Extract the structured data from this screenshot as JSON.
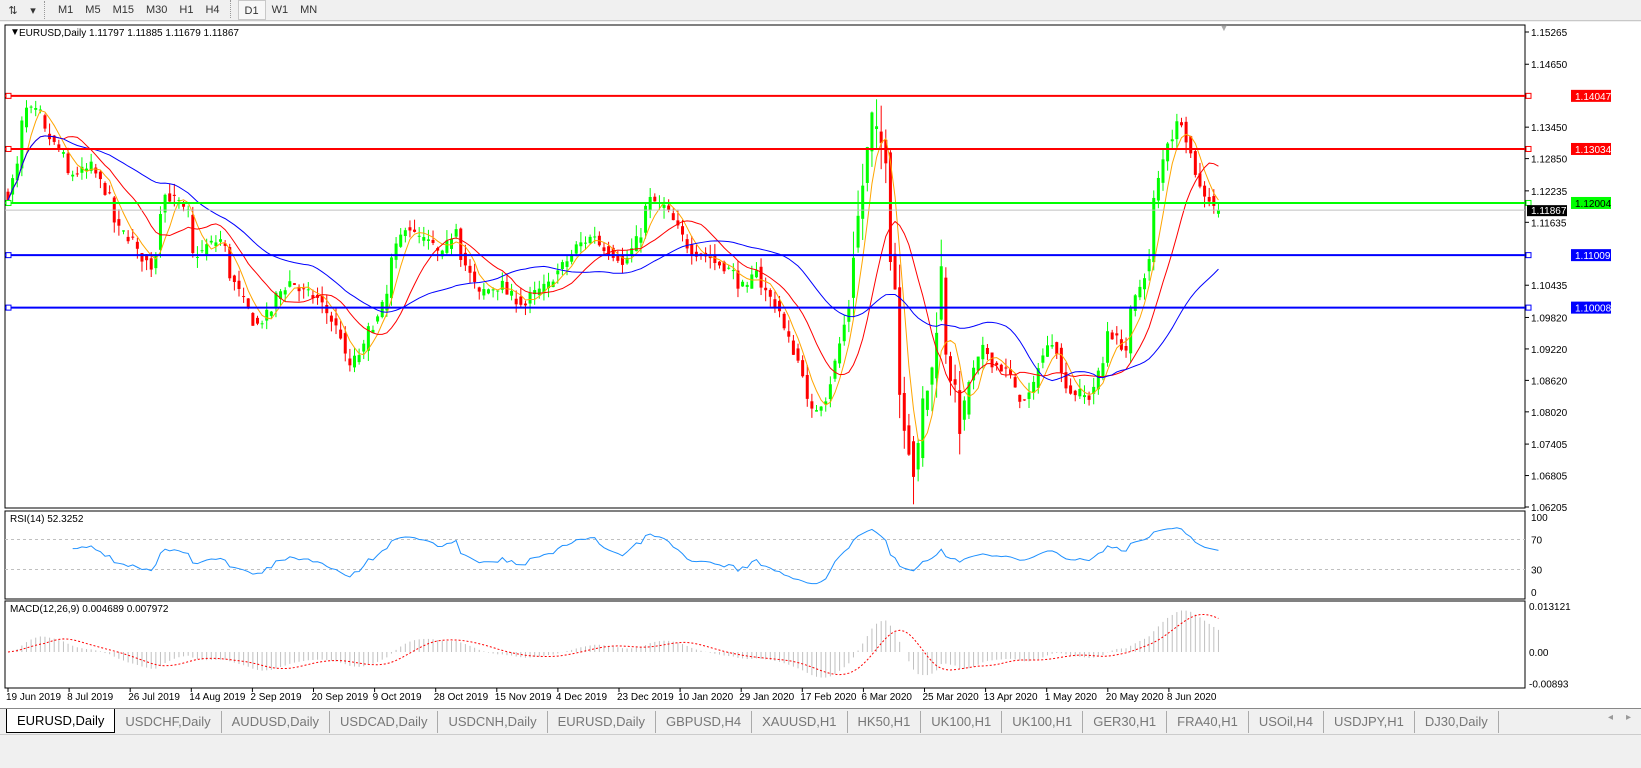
{
  "toolbar": {
    "icons": [
      "chart-style-icon",
      "dropdown-icon"
    ],
    "timeframes": [
      "M1",
      "M5",
      "M15",
      "M30",
      "H1",
      "H4",
      "D1",
      "W1",
      "MN"
    ],
    "active": "D1"
  },
  "chart": {
    "header": "EURUSD,Daily  1.11797 1.11885 1.11679 1.11867",
    "price_axis": [
      "1.15265",
      "1.14650",
      "1.13450",
      "1.12850",
      "1.12235",
      "1.11635",
      "1.10435",
      "1.09820",
      "1.09220",
      "1.08620",
      "1.08020",
      "1.07405",
      "1.06805",
      "1.06205"
    ],
    "price_range": [
      1.06205,
      1.15265
    ],
    "current_price": "1.11867",
    "levels": [
      {
        "price": "1.14047",
        "color": "#ff0000"
      },
      {
        "price": "1.13034",
        "color": "#ff0000"
      },
      {
        "price": "1.12004",
        "color": "#00ff00"
      },
      {
        "price": "1.11009",
        "color": "#0000ff"
      },
      {
        "price": "1.10008",
        "color": "#0000ff"
      }
    ],
    "colors": {
      "bull": "#00ff00",
      "bear": "#ff0000",
      "ma_fast": "#ffa500",
      "ma_mid": "#ff0000",
      "ma_slow": "#0000ff"
    },
    "close_path": [
      [
        "2019-06-19",
        1.1216
      ],
      [
        "2019-06-25",
        1.1378
      ],
      [
        "2019-06-28",
        1.137
      ],
      [
        "2019-07-08",
        1.1254
      ],
      [
        "2019-07-15",
        1.127
      ],
      [
        "2019-07-23",
        1.1149
      ],
      [
        "2019-07-26",
        1.113
      ],
      [
        "2019-08-01",
        1.108
      ],
      [
        "2019-08-06",
        1.1216
      ],
      [
        "2019-08-13",
        1.118
      ],
      [
        "2019-08-14",
        1.11
      ],
      [
        "2019-08-22",
        1.113
      ],
      [
        "2019-08-30",
        1.0996
      ],
      [
        "2019-09-03",
        1.0968
      ],
      [
        "2019-09-12",
        1.105
      ],
      [
        "2019-09-23",
        1.1006
      ],
      [
        "2019-10-01",
        1.089
      ],
      [
        "2019-10-09",
        1.098
      ],
      [
        "2019-10-17",
        1.1158
      ],
      [
        "2019-10-29",
        1.11
      ],
      [
        "2019-11-01",
        1.1158
      ],
      [
        "2019-11-08",
        1.1025
      ],
      [
        "2019-11-15",
        1.1044
      ],
      [
        "2019-11-22",
        1.1006
      ],
      [
        "2019-12-02",
        1.106
      ],
      [
        "2019-12-06",
        1.11
      ],
      [
        "2019-12-13",
        1.114
      ],
      [
        "2019-12-23",
        1.108
      ],
      [
        "2019-12-31",
        1.1206
      ],
      [
        "2020-01-06",
        1.118
      ],
      [
        "2020-01-10",
        1.112
      ],
      [
        "2020-01-22",
        1.108
      ],
      [
        "2020-01-29",
        1.1034
      ],
      [
        "2020-01-31",
        1.108
      ],
      [
        "2020-02-10",
        1.0958
      ],
      [
        "2020-02-18",
        1.08
      ],
      [
        "2020-02-24",
        1.086
      ],
      [
        "2020-03-02",
        1.111
      ],
      [
        "2020-03-06",
        1.1359
      ],
      [
        "2020-03-11",
        1.13
      ],
      [
        "2020-03-12",
        1.111
      ],
      [
        "2020-03-16",
        1.084
      ],
      [
        "2020-03-19",
        1.069
      ],
      [
        "2020-03-25",
        1.088
      ],
      [
        "2020-03-27",
        1.107
      ],
      [
        "2020-04-02",
        1.078
      ],
      [
        "2020-04-09",
        1.092
      ],
      [
        "2020-04-16",
        1.088
      ],
      [
        "2020-04-22",
        1.082
      ],
      [
        "2020-04-30",
        1.0939
      ],
      [
        "2020-05-06",
        1.084
      ],
      [
        "2020-05-12",
        1.083
      ],
      [
        "2020-05-18",
        1.0958
      ],
      [
        "2020-05-22",
        1.092
      ],
      [
        "2020-05-29",
        1.109
      ],
      [
        "2020-06-04",
        1.132
      ],
      [
        "2020-06-09",
        1.1359
      ],
      [
        "2020-06-12",
        1.126
      ],
      [
        "2020-06-19",
        1.1187
      ]
    ]
  },
  "rsi": {
    "label": "RSI(14) 52.3252",
    "axis": [
      "100",
      "70",
      "30",
      "0"
    ],
    "color": "#1e90ff"
  },
  "macd": {
    "label": "MACD(12,26,9) 0.004689 0.007972",
    "axis": [
      "0.013121",
      "0.00",
      "-0.00893"
    ],
    "hist_color": "#c0c0c0",
    "signal_color": "#ff0000"
  },
  "time_axis": [
    "19 Jun 2019",
    "8 Jul 2019",
    "26 Jul 2019",
    "14 Aug 2019",
    "2 Sep 2019",
    "20 Sep 2019",
    "9 Oct 2019",
    "28 Oct 2019",
    "15 Nov 2019",
    "4 Dec 2019",
    "23 Dec 2019",
    "10 Jan 2020",
    "29 Jan 2020",
    "17 Feb 2020",
    "6 Mar 2020",
    "25 Mar 2020",
    "13 Apr 2020",
    "1 May 2020",
    "20 May 2020",
    "8 Jun 2020"
  ],
  "tabs": [
    "EURUSD,Daily",
    "USDCHF,Daily",
    "AUDUSD,Daily",
    "USDCAD,Daily",
    "USDCNH,Daily",
    "EURUSD,Daily",
    "GBPUSD,H4",
    "XAUUSD,H1",
    "HK50,H1",
    "UK100,H1",
    "UK100,H1",
    "GER30,H1",
    "FRA40,H1",
    "USOil,H4",
    "USDJPY,H1",
    "DJ30,Daily"
  ],
  "active_tab": 0
}
